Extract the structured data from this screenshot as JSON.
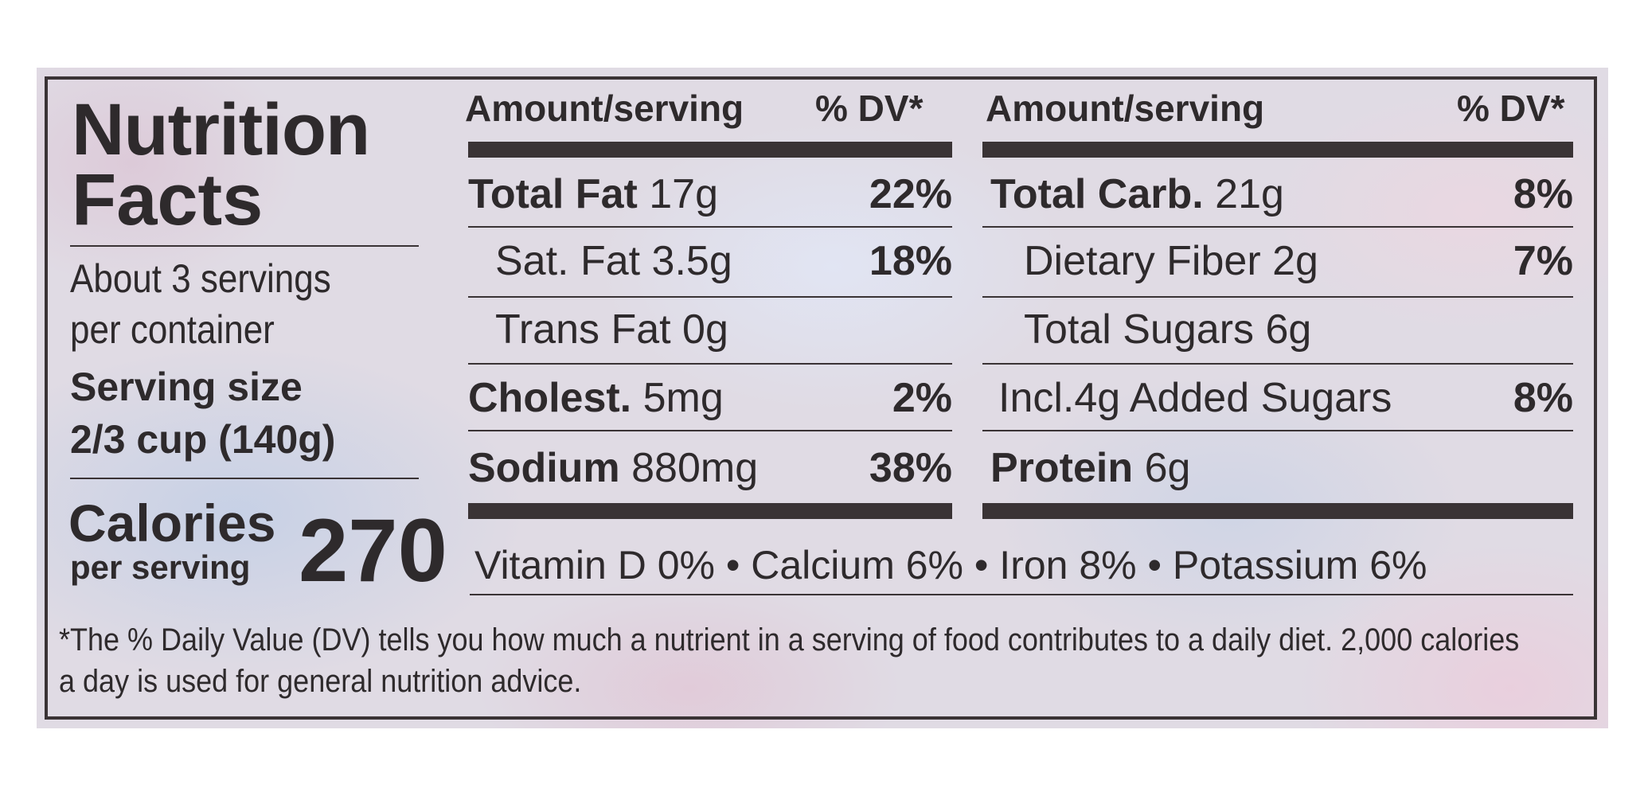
{
  "label": {
    "title_line1": "Nutrition",
    "title_line2": "Facts",
    "servings_line1": "About 3 servings",
    "servings_line2": "per container",
    "serving_size_label": "Serving size",
    "serving_size_value": "2/3 cup (140g)",
    "calories_label": "Calories",
    "calories_sub": "per serving",
    "calories_value": "270"
  },
  "headers": {
    "left_amount": "Amount/serving",
    "left_dv": "% DV*",
    "right_amount": "Amount/serving",
    "right_dv": "% DV*"
  },
  "left_rows": [
    {
      "name": "Total Fat",
      "amount": "17g",
      "dv": "22%"
    },
    {
      "name": "Sat. Fat",
      "amount": "3.5g",
      "dv": "18%"
    },
    {
      "name": "Trans Fat",
      "amount": "0g",
      "dv": ""
    },
    {
      "name": "Cholest.",
      "amount": "5mg",
      "dv": "2%"
    },
    {
      "name": "Sodium",
      "amount": "880mg",
      "dv": "38%"
    }
  ],
  "right_rows": [
    {
      "name": "Total Carb.",
      "amount": "21g",
      "dv": "8%"
    },
    {
      "name": "Dietary Fiber",
      "amount": "2g",
      "dv": "7%"
    },
    {
      "name": "Total Sugars",
      "amount": "6g",
      "dv": ""
    },
    {
      "name": "Incl.4g Added Sugars",
      "amount": "",
      "dv": "8%"
    },
    {
      "name": "Protein",
      "amount": "6g",
      "dv": ""
    }
  ],
  "vitamins": "Vitamin D 0% • Calcium 6% • Iron 8% • Potassium 6%",
  "footnote_line1": "*The % Daily Value (DV) tells you how much a nutrient in a serving of food contributes to a daily diet. 2,000 calories",
  "footnote_line2": "a day is used for general nutrition advice.",
  "colors": {
    "ink": "#3a3335",
    "package_background": "#e0dbe4"
  }
}
